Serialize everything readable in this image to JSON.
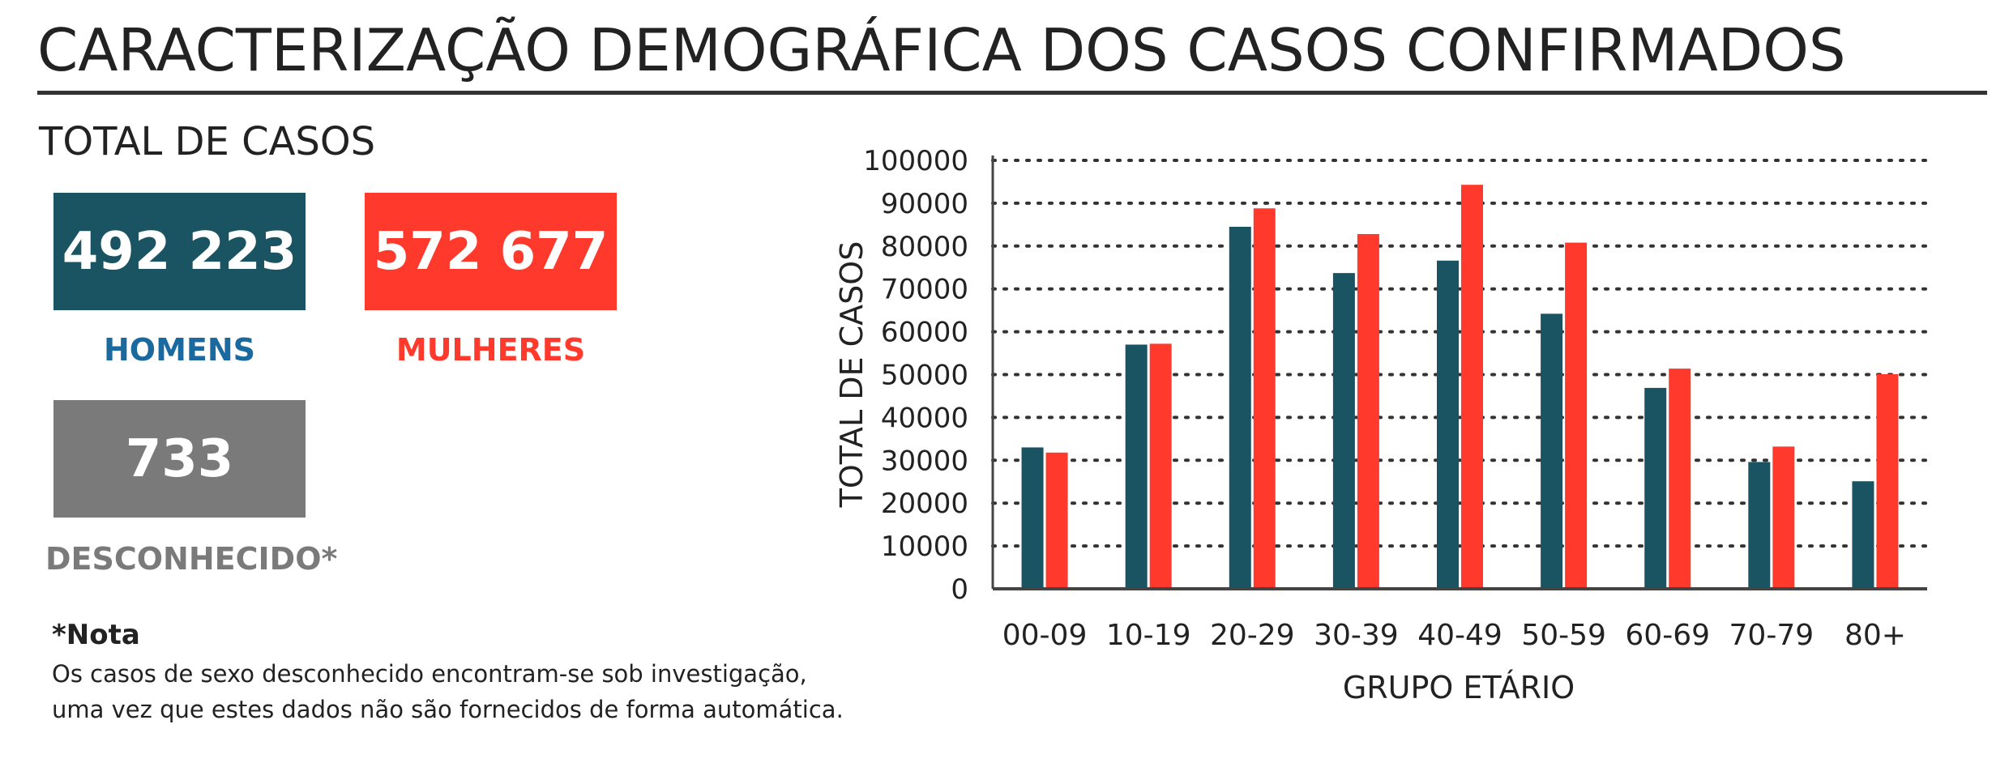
{
  "header": {
    "title": "CARACTERIZAÇÃO DEMOGRÁFICA DOS CASOS CONFIRMADOS",
    "total_label": "TOTAL DE CASOS"
  },
  "stats": {
    "men": {
      "value": "492 223",
      "label": "HOMENS",
      "color": "#1a5463",
      "label_color": "#1a6aa0"
    },
    "women": {
      "value": "572 677",
      "label": "MULHERES",
      "color": "#ff3a2d",
      "label_color": "#ff3a2d"
    },
    "unknown": {
      "value": "733",
      "label": "DESCONHECIDO*",
      "color": "#7a7a7a",
      "label_color": "#7a7a7a"
    }
  },
  "note": {
    "title": "*Nota",
    "line1": "Os casos de sexo desconhecido encontram-se sob investigação,",
    "line2": "uma vez que estes dados não são fornecidos de forma automática."
  },
  "chart_data": {
    "type": "bar",
    "categories": [
      "00-09",
      "10-19",
      "20-29",
      "30-39",
      "40-49",
      "50-59",
      "60-69",
      "70-79",
      "80+"
    ],
    "series": [
      {
        "values": [
          33000,
          57000,
          84500,
          73700,
          76600,
          64200,
          46900,
          29600,
          25100
        ],
        "color": "#1a5463"
      },
      {
        "values": [
          31800,
          57200,
          88800,
          82800,
          94300,
          80800,
          51400,
          33200,
          50100
        ],
        "color": "#ff3a2d"
      }
    ],
    "xlabel": "GRUPO ETÁRIO",
    "ylabel": "TOTAL DE CASOS",
    "ylim": [
      0,
      100000
    ],
    "yticks": [
      0,
      10000,
      20000,
      30000,
      40000,
      50000,
      60000,
      70000,
      80000,
      90000,
      100000
    ],
    "grid": true,
    "legend": "none"
  }
}
